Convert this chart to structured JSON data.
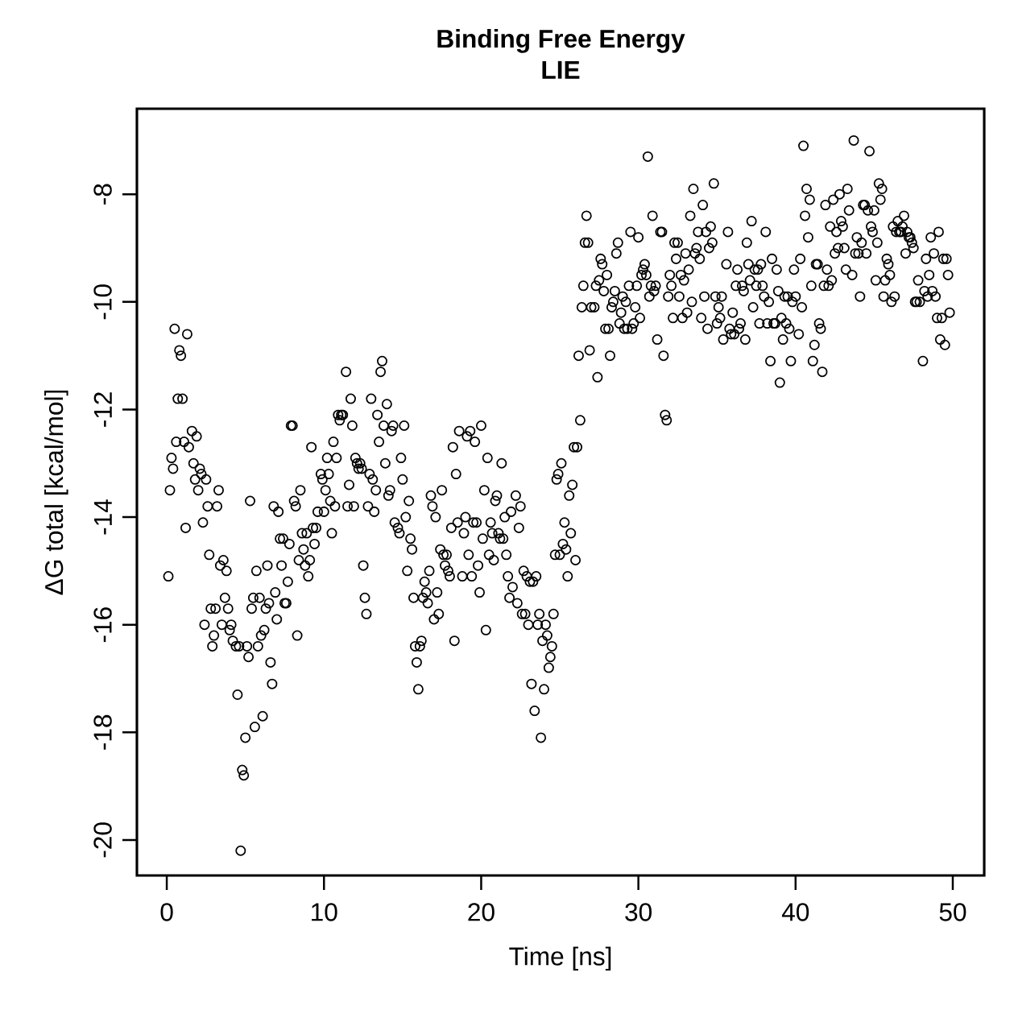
{
  "chart_data": {
    "type": "scatter",
    "title": "Binding Free Energy",
    "subtitle": "LIE",
    "xlabel": "Time [ns]",
    "ylabel": "ΔG total [kcal/mol]",
    "xlim": [
      -1.9,
      52.0
    ],
    "ylim": [
      -20.66,
      -6.41
    ],
    "xticks": [
      0,
      10,
      20,
      30,
      40,
      50
    ],
    "yticks": [
      -20,
      -18,
      -16,
      -14,
      -12,
      -10,
      -8
    ],
    "marker": "circle",
    "color": "#000000",
    "x": [
      0.1,
      0.2,
      0.3,
      0.4,
      0.5,
      0.6,
      0.7,
      0.8,
      0.9,
      1.0,
      1.1,
      1.2,
      1.3,
      1.4,
      1.6,
      1.7,
      1.8,
      1.9,
      2.0,
      2.1,
      2.2,
      2.3,
      2.4,
      2.5,
      2.6,
      2.7,
      2.8,
      2.9,
      3.0,
      3.1,
      3.2,
      3.3,
      3.4,
      3.5,
      3.6,
      3.7,
      3.8,
      3.9,
      4.0,
      4.1,
      4.2,
      4.4,
      4.5,
      4.6,
      4.7,
      4.8,
      4.9,
      5.0,
      5.1,
      5.2,
      5.3,
      5.4,
      5.5,
      5.6,
      5.7,
      5.8,
      5.9,
      6.0,
      6.1,
      6.2,
      6.3,
      6.4,
      6.5,
      6.6,
      6.7,
      6.8,
      6.9,
      7.0,
      7.1,
      7.2,
      7.3,
      7.4,
      7.5,
      7.6,
      7.7,
      7.8,
      7.9,
      8.0,
      8.1,
      8.2,
      8.3,
      8.4,
      8.5,
      8.6,
      8.7,
      8.8,
      8.9,
      9.0,
      9.1,
      9.2,
      9.3,
      9.4,
      9.5,
      9.6,
      9.8,
      9.9,
      10.0,
      10.1,
      10.2,
      10.3,
      10.4,
      10.5,
      10.6,
      10.7,
      10.8,
      10.9,
      11.0,
      11.1,
      11.2,
      11.4,
      11.5,
      11.6,
      11.7,
      11.8,
      11.9,
      12.0,
      12.1,
      12.2,
      12.3,
      12.4,
      12.5,
      12.6,
      12.7,
      12.8,
      12.9,
      13.0,
      13.1,
      13.2,
      13.3,
      13.4,
      13.5,
      13.6,
      13.7,
      13.8,
      13.9,
      14.0,
      14.1,
      14.2,
      14.3,
      14.4,
      14.5,
      14.7,
      14.8,
      14.9,
      15.0,
      15.1,
      15.2,
      15.3,
      15.4,
      15.5,
      15.6,
      15.7,
      15.8,
      15.9,
      16.0,
      16.1,
      16.2,
      16.3,
      16.4,
      16.5,
      16.6,
      16.7,
      16.8,
      16.9,
      17.0,
      17.1,
      17.2,
      17.3,
      17.4,
      17.5,
      17.6,
      17.7,
      17.8,
      17.9,
      18.0,
      18.1,
      18.2,
      18.3,
      18.4,
      18.5,
      18.6,
      18.8,
      18.9,
      19.0,
      19.1,
      19.2,
      19.3,
      19.4,
      19.5,
      19.6,
      19.7,
      19.8,
      19.9,
      20.0,
      20.1,
      20.2,
      20.3,
      20.4,
      20.5,
      20.6,
      20.7,
      20.8,
      20.9,
      21.0,
      21.1,
      21.2,
      21.3,
      21.4,
      21.5,
      21.6,
      21.7,
      21.8,
      21.9,
      22.0,
      22.2,
      22.3,
      22.4,
      22.5,
      22.6,
      22.7,
      22.8,
      22.9,
      23.0,
      23.1,
      23.2,
      23.3,
      23.4,
      23.5,
      23.6,
      23.7,
      23.8,
      23.9,
      24.0,
      24.1,
      24.2,
      24.3,
      24.4,
      24.5,
      24.6,
      24.7,
      24.8,
      24.9,
      25.0,
      25.1,
      25.2,
      25.3,
      25.4,
      25.5,
      25.6,
      25.7,
      25.8,
      25.9,
      26.0,
      26.1,
      26.2,
      26.3,
      26.4,
      26.5,
      26.6,
      26.7,
      26.8,
      26.9,
      27.0,
      27.2,
      27.3,
      27.4,
      27.5,
      27.6,
      27.7,
      27.8,
      27.9,
      28.0,
      28.1,
      28.2,
      28.3,
      28.4,
      28.5,
      28.6,
      28.7,
      28.8,
      28.9,
      29.0,
      29.1,
      29.2,
      29.3,
      29.4,
      29.5,
      29.6,
      29.7,
      29.8,
      29.9,
      30.0,
      30.1,
      30.2,
      30.3,
      30.4,
      30.5,
      30.6,
      30.7,
      30.8,
      30.9,
      31.0,
      31.1,
      31.2,
      31.4,
      31.5,
      31.6,
      31.7,
      31.8,
      31.9,
      32.0,
      32.1,
      32.2,
      32.3,
      32.4,
      32.5,
      32.6,
      32.7,
      32.8,
      32.9,
      33.0,
      33.1,
      33.2,
      33.3,
      33.4,
      33.5,
      33.6,
      33.7,
      33.8,
      33.9,
      34.0,
      34.1,
      34.2,
      34.3,
      34.4,
      34.5,
      34.6,
      34.7,
      34.8,
      34.9,
      35.0,
      35.1,
      35.2,
      35.3,
      35.4,
      35.6,
      35.7,
      35.8,
      35.9,
      36.0,
      36.1,
      36.2,
      36.3,
      36.4,
      36.5,
      36.6,
      36.7,
      36.8,
      36.9,
      37.0,
      37.1,
      37.2,
      37.3,
      37.4,
      37.5,
      37.6,
      37.7,
      37.8,
      37.9,
      38.0,
      38.1,
      38.2,
      38.3,
      38.4,
      38.5,
      38.6,
      38.7,
      38.8,
      38.9,
      39.0,
      39.1,
      39.2,
      39.3,
      39.4,
      39.5,
      39.6,
      39.7,
      39.8,
      39.9,
      40.0,
      40.2,
      40.3,
      40.4,
      40.5,
      40.6,
      40.7,
      40.8,
      40.9,
      41.0,
      41.1,
      41.2,
      41.3,
      41.4,
      41.5,
      41.6,
      41.7,
      41.8,
      41.9,
      42.0,
      42.1,
      42.2,
      42.3,
      42.4,
      42.5,
      42.6,
      42.7,
      42.8,
      42.9,
      43.0,
      43.1,
      43.2,
      43.3,
      43.4,
      43.6,
      43.7,
      43.8,
      43.9,
      44.0,
      44.1,
      44.2,
      44.3,
      44.4,
      44.5,
      44.6,
      44.7,
      44.8,
      44.9,
      45.0,
      45.1,
      45.2,
      45.3,
      45.4,
      45.5,
      45.6,
      45.7,
      45.8,
      45.9,
      46.0,
      46.1,
      46.2,
      46.3,
      46.4,
      46.5,
      46.6,
      46.7,
      46.8,
      46.9,
      47.0,
      47.1,
      47.2,
      47.3,
      47.4,
      47.5,
      47.6,
      47.7,
      47.8,
      47.9,
      48.1,
      48.2,
      48.3,
      48.4,
      48.5,
      48.6,
      48.7,
      48.8,
      48.9,
      49.0,
      49.1,
      49.2,
      49.3,
      49.4,
      49.5,
      49.6,
      49.7,
      49.8
    ],
    "values": [
      -15.1,
      -13.5,
      -12.9,
      -13.1,
      -10.5,
      -12.6,
      -11.8,
      -10.9,
      -11.0,
      -11.8,
      -12.6,
      -14.2,
      -10.6,
      -12.7,
      -12.4,
      -13.0,
      -13.3,
      -12.5,
      -13.5,
      -13.1,
      -13.2,
      -14.1,
      -16.0,
      -13.3,
      -13.8,
      -14.7,
      -15.7,
      -16.4,
      -16.2,
      -15.7,
      -13.8,
      -13.5,
      -14.9,
      -16.0,
      -14.8,
      -15.5,
      -15.0,
      -15.7,
      -16.1,
      -16.0,
      -16.3,
      -16.4,
      -17.3,
      -16.4,
      -20.2,
      -18.7,
      -18.8,
      -18.1,
      -16.4,
      -16.6,
      -13.7,
      -15.7,
      -15.5,
      -17.9,
      -15.0,
      -16.4,
      -15.5,
      -16.2,
      -17.7,
      -16.1,
      -15.7,
      -14.9,
      -15.6,
      -16.7,
      -17.1,
      -13.8,
      -15.4,
      -15.9,
      -13.9,
      -14.4,
      -14.9,
      -14.4,
      -15.6,
      -15.6,
      -15.2,
      -14.5,
      -12.3,
      -12.3,
      -13.7,
      -13.8,
      -16.2,
      -14.8,
      -13.5,
      -14.3,
      -14.6,
      -14.9,
      -14.3,
      -15.1,
      -14.8,
      -12.7,
      -14.2,
      -14.5,
      -14.2,
      -13.9,
      -13.2,
      -13.3,
      -13.9,
      -13.5,
      -12.9,
      -13.2,
      -13.7,
      -14.3,
      -12.6,
      -13.8,
      -12.9,
      -12.1,
      -12.2,
      -12.1,
      -12.1,
      -11.3,
      -13.8,
      -13.4,
      -11.8,
      -12.3,
      -13.8,
      -12.9,
      -13.0,
      -13.1,
      -13.0,
      -13.1,
      -14.9,
      -15.5,
      -15.8,
      -13.8,
      -13.2,
      -11.8,
      -13.3,
      -13.9,
      -13.5,
      -12.1,
      -12.6,
      -11.3,
      -11.1,
      -12.3,
      -13.0,
      -11.9,
      -13.6,
      -13.5,
      -12.4,
      -12.3,
      -14.1,
      -14.2,
      -14.3,
      -12.9,
      -13.3,
      -12.3,
      -14.0,
      -15.0,
      -13.7,
      -14.4,
      -14.6,
      -15.5,
      -16.4,
      -16.7,
      -17.2,
      -16.4,
      -16.3,
      -15.5,
      -15.2,
      -15.4,
      -15.6,
      -15.0,
      -13.6,
      -13.8,
      -15.9,
      -14.0,
      -15.4,
      -15.8,
      -14.6,
      -13.5,
      -14.7,
      -14.9,
      -14.7,
      -15.0,
      -15.1,
      -14.2,
      -12.7,
      -16.3,
      -13.2,
      -14.1,
      -12.4,
      -15.1,
      -14.3,
      -14.0,
      -12.5,
      -14.7,
      -12.4,
      -15.1,
      -14.1,
      -12.6,
      -14.1,
      -14.9,
      -15.4,
      -12.3,
      -14.4,
      -13.5,
      -16.1,
      -12.9,
      -14.7,
      -14.1,
      -14.3,
      -14.8,
      -13.7,
      -13.6,
      -14.3,
      -14.4,
      -13.0,
      -14.4,
      -14.0,
      -14.7,
      -15.1,
      -15.5,
      -13.9,
      -15.3,
      -13.6,
      -15.6,
      -14.2,
      -13.8,
      -15.8,
      -15.0,
      -15.8,
      -15.1,
      -16.0,
      -15.2,
      -17.1,
      -15.2,
      -17.6,
      -15.1,
      -16.0,
      -15.8,
      -18.1,
      -16.3,
      -17.2,
      -16.0,
      -16.2,
      -16.8,
      -16.6,
      -16.4,
      -15.8,
      -14.7,
      -13.3,
      -13.2,
      -14.7,
      -13.0,
      -14.5,
      -14.1,
      -14.6,
      -15.1,
      -13.6,
      -14.3,
      -13.4,
      -12.7,
      -14.8,
      -12.7,
      -11.0,
      -12.2,
      -10.1,
      -9.7,
      -8.9,
      -8.4,
      -8.9,
      -10.9,
      -10.1,
      -10.1,
      -9.7,
      -11.4,
      -9.6,
      -9.2,
      -9.3,
      -9.8,
      -10.5,
      -9.5,
      -10.5,
      -11.0,
      -10.1,
      -10.0,
      -9.8,
      -9.1,
      -8.9,
      -10.4,
      -10.2,
      -9.9,
      -10.5,
      -10.0,
      -10.5,
      -9.7,
      -8.7,
      -10.5,
      -10.4,
      -10.1,
      -9.7,
      -8.8,
      -10.3,
      -9.5,
      -9.4,
      -9.3,
      -9.5,
      -7.3,
      -9.9,
      -9.7,
      -8.4,
      -9.8,
      -9.7,
      -10.7,
      -8.7,
      -8.7,
      -11.0,
      -12.1,
      -12.2,
      -9.9,
      -9.5,
      -9.7,
      -10.3,
      -8.9,
      -9.2,
      -8.9,
      -9.9,
      -9.5,
      -10.3,
      -9.6,
      -9.1,
      -10.2,
      -9.4,
      -8.4,
      -10.0,
      -7.9,
      -9.1,
      -9.0,
      -8.7,
      -9.2,
      -10.3,
      -8.2,
      -9.9,
      -8.7,
      -10.5,
      -9.0,
      -8.6,
      -8.9,
      -7.8,
      -9.9,
      -10.4,
      -10.1,
      -10.3,
      -9.9,
      -10.7,
      -9.3,
      -8.7,
      -10.5,
      -10.6,
      -10.2,
      -10.6,
      -9.7,
      -9.4,
      -10.5,
      -10.4,
      -9.7,
      -9.8,
      -10.7,
      -8.9,
      -9.3,
      -9.6,
      -8.5,
      -10.1,
      -9.4,
      -9.7,
      -9.4,
      -10.4,
      -9.3,
      -9.7,
      -9.9,
      -8.7,
      -10.4,
      -10.0,
      -11.1,
      -9.2,
      -10.4,
      -10.4,
      -9.4,
      -9.8,
      -11.5,
      -10.3,
      -10.7,
      -9.9,
      -10.4,
      -9.9,
      -10.5,
      -11.1,
      -10.0,
      -9.4,
      -9.9,
      -10.6,
      -9.2,
      -10.1,
      -7.1,
      -8.4,
      -7.9,
      -8.8,
      -8.1,
      -9.7,
      -11.1,
      -10.8,
      -9.3,
      -9.3,
      -10.4,
      -10.5,
      -11.3,
      -9.7,
      -8.2,
      -9.4,
      -9.7,
      -8.6,
      -9.6,
      -8.1,
      -9.1,
      -8.7,
      -9.0,
      -8.0,
      -8.5,
      -8.6,
      -9.0,
      -9.4,
      -7.9,
      -8.3,
      -9.5,
      -7.0,
      -9.1,
      -8.8,
      -9.1,
      -9.9,
      -8.9,
      -8.2,
      -8.2,
      -9.1,
      -8.3,
      -7.2,
      -8.6,
      -8.7,
      -8.3,
      -9.6,
      -8.9,
      -7.8,
      -8.1,
      -7.9,
      -9.9,
      -9.6,
      -9.2,
      -9.3,
      -9.5,
      -10.0,
      -8.6,
      -9.9,
      -8.7,
      -8.5,
      -8.7,
      -8.7,
      -8.6,
      -8.4,
      -9.1,
      -8.7,
      -8.8,
      -8.8,
      -8.9,
      -9.0,
      -10.0,
      -10.0,
      -9.6,
      -10.0,
      -11.1,
      -9.8,
      -9.2,
      -9.9,
      -9.5,
      -8.8,
      -9.8,
      -9.1,
      -9.9,
      -10.3,
      -8.7,
      -10.7,
      -10.3,
      -9.2,
      -10.8,
      -9.2,
      -9.5,
      -10.2
    ]
  }
}
